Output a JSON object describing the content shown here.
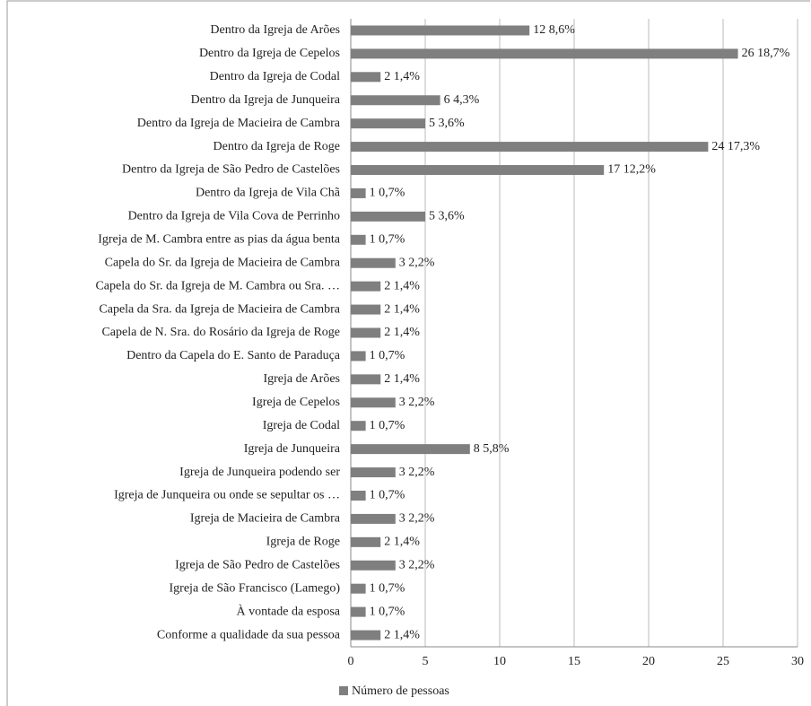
{
  "chart_data": {
    "type": "barh",
    "categories": [
      "Dentro da Igreja de Arões",
      "Dentro da Igreja de Cepelos",
      "Dentro da Igreja de Codal",
      "Dentro da Igreja de Junqueira",
      "Dentro da Igreja de Macieira de Cambra",
      "Dentro da Igreja de Roge",
      "Dentro da Igreja de São Pedro de Castelões",
      "Dentro da Igreja de Vila Chã",
      "Dentro da Igreja de Vila Cova de Perrinho",
      "Igreja de M. Cambra entre as pias da água benta",
      "Capela do Sr. da Igreja de Macieira de Cambra",
      "Capela do Sr. da Igreja de M. Cambra ou Sra. …",
      "Capela da Sra. da Igreja de Macieira de Cambra",
      "Capela de N. Sra. do Rosário da Igreja de Roge",
      "Dentro da Capela do E. Santo de Paraduça",
      "Igreja de Arões",
      "Igreja de Cepelos",
      "Igreja de Codal",
      "Igreja de Junqueira",
      "Igreja de Junqueira podendo ser",
      "Igreja de Junqueira ou onde se sepultar os …",
      "Igreja de Macieira de Cambra",
      "Igreja de Roge",
      "Igreja de São Pedro de Castelões",
      "Igreja de São Francisco (Lamego)",
      "À vontade da esposa",
      "Conforme a qualidade da sua pessoa"
    ],
    "series": [
      {
        "name": "Número de pessoas",
        "color": "#7f7f7f",
        "values": [
          12,
          26,
          2,
          6,
          5,
          24,
          17,
          1,
          5,
          1,
          3,
          2,
          2,
          2,
          1,
          2,
          3,
          1,
          8,
          3,
          1,
          3,
          2,
          3,
          1,
          1,
          2
        ],
        "value_labels": [
          "12 8,6%",
          "26 18,7%",
          "2 1,4%",
          "6 4,3%",
          "5 3,6%",
          "24 17,3%",
          "17 12,2%",
          "1 0,7%",
          "5 3,6%",
          "1 0,7%",
          "3 2,2%",
          "2 1,4%",
          "2 1,4%",
          "2 1,4%",
          "1 0,7%",
          "2 1,4%",
          "3 2,2%",
          "1 0,7%",
          "8 5,8%",
          "3 2,2%",
          "1 0,7%",
          "3 2,2%",
          "2 1,4%",
          "3 2,2%",
          "1 0,7%",
          "1 0,7%",
          "2 1,4%"
        ]
      }
    ],
    "xlim": [
      0,
      30
    ],
    "xticks": [
      0,
      5,
      10,
      15,
      20,
      25,
      30
    ],
    "grid": true,
    "legend": "bottom"
  }
}
